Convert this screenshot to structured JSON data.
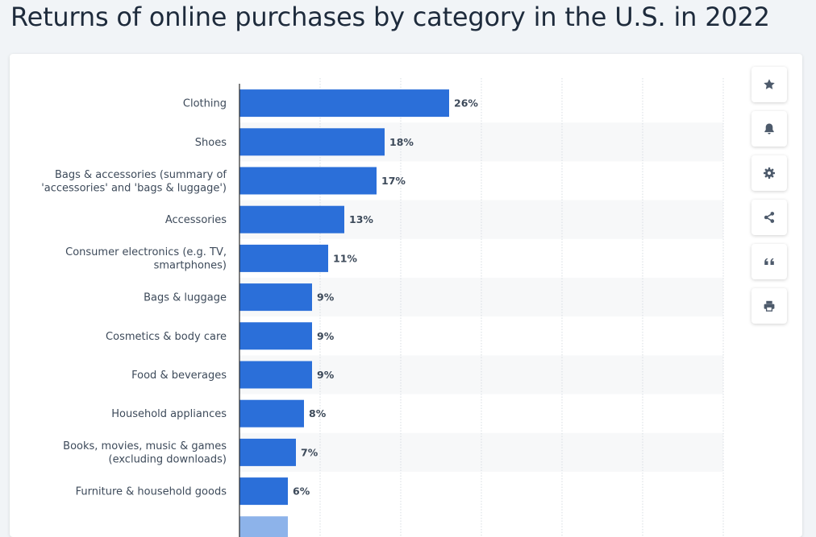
{
  "page": {
    "title": "Returns of online purchases by category in the U.S. in 2022"
  },
  "colors": {
    "bar": "#2b6fd9",
    "bar_partial": "#8db3ea",
    "band": "#f7f8f9",
    "label": "#3d4a5a",
    "icon": "#4d5a6b"
  },
  "toolbar": {
    "buttons": [
      {
        "name": "favorite",
        "icon": "star-icon"
      },
      {
        "name": "notification",
        "icon": "bell-icon"
      },
      {
        "name": "settings",
        "icon": "gear-icon"
      },
      {
        "name": "share",
        "icon": "share-icon"
      },
      {
        "name": "cite",
        "icon": "quote-icon"
      },
      {
        "name": "print",
        "icon": "printer-icon"
      }
    ]
  },
  "chart_data": {
    "type": "bar",
    "orientation": "horizontal",
    "title": "Returns of online purchases by category in the U.S. in 2022",
    "xlim": [
      0,
      60
    ],
    "grid": true,
    "categories": [
      "Clothing",
      "Shoes",
      "Bags & accessories (summary of 'accessories' and 'bags & luggage')",
      "Accessories",
      "Consumer electronics (e.g. TV, smartphones)",
      "Bags & luggage",
      "Cosmetics & body care",
      "Food & beverages",
      "Household appliances",
      "Books, movies, music & games (excluding downloads)",
      "Furniture & household goods"
    ],
    "category_lines": [
      [
        "Clothing"
      ],
      [
        "Shoes"
      ],
      [
        "Bags & accessories (summary of",
        "'accessories' and 'bags & luggage')"
      ],
      [
        "Accessories"
      ],
      [
        "Consumer electronics (e.g. TV,",
        "smartphones)"
      ],
      [
        "Bags & luggage"
      ],
      [
        "Cosmetics & body care"
      ],
      [
        "Food & beverages"
      ],
      [
        "Household appliances"
      ],
      [
        "Books, movies, music & games",
        "(excluding downloads)"
      ],
      [
        "Furniture & household goods"
      ]
    ],
    "values": [
      26,
      18,
      17,
      13,
      11,
      9,
      9,
      9,
      8,
      7,
      6
    ],
    "value_labels": [
      "26%",
      "18%",
      "17%",
      "13%",
      "11%",
      "9%",
      "9%",
      "9%",
      "8%",
      "7%",
      "6%"
    ],
    "partial_next_bar_value": 6
  }
}
